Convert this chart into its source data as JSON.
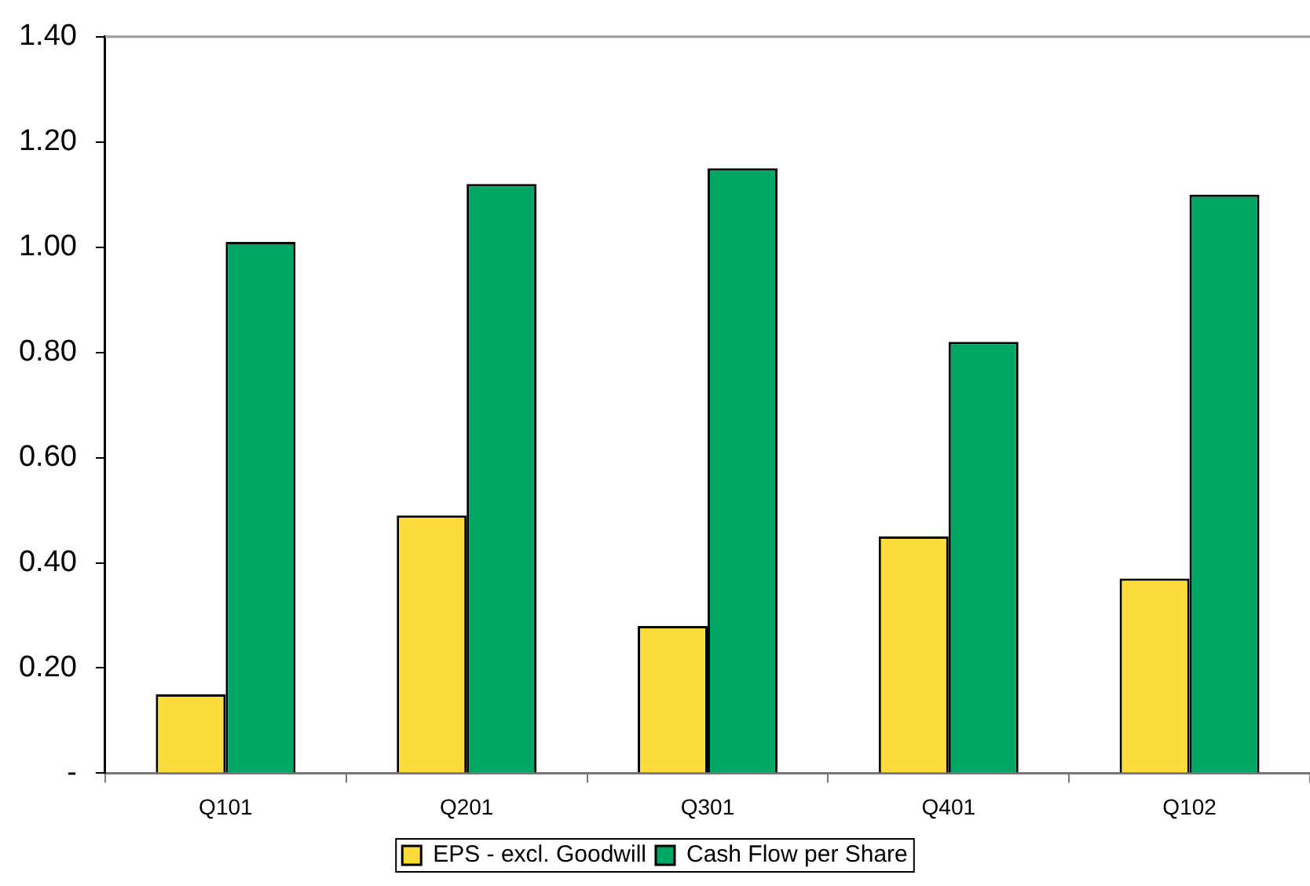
{
  "chart_data": {
    "type": "bar",
    "categories": [
      "Q101",
      "Q201",
      "Q301",
      "Q401",
      "Q102"
    ],
    "series": [
      {
        "name": "EPS - excl. Goodwill",
        "color": "#fbdc3a",
        "values": [
          0.15,
          0.49,
          0.28,
          0.45,
          0.37
        ]
      },
      {
        "name": "Cash Flow per Share",
        "color": "#00a764",
        "values": [
          1.01,
          1.12,
          1.15,
          0.82,
          1.1
        ]
      }
    ],
    "ylim": [
      0,
      1.4
    ],
    "yticks": [
      {
        "value": 0,
        "label": "-"
      },
      {
        "value": 0.2,
        "label": "0.20"
      },
      {
        "value": 0.4,
        "label": "0.40"
      },
      {
        "value": 0.6,
        "label": "0.60"
      },
      {
        "value": 0.8,
        "label": "0.80"
      },
      {
        "value": 1.0,
        "label": "1.00"
      },
      {
        "value": 1.2,
        "label": "1.20"
      },
      {
        "value": 1.4,
        "label": "1.40"
      }
    ],
    "grid": false,
    "legend": "bottom"
  }
}
